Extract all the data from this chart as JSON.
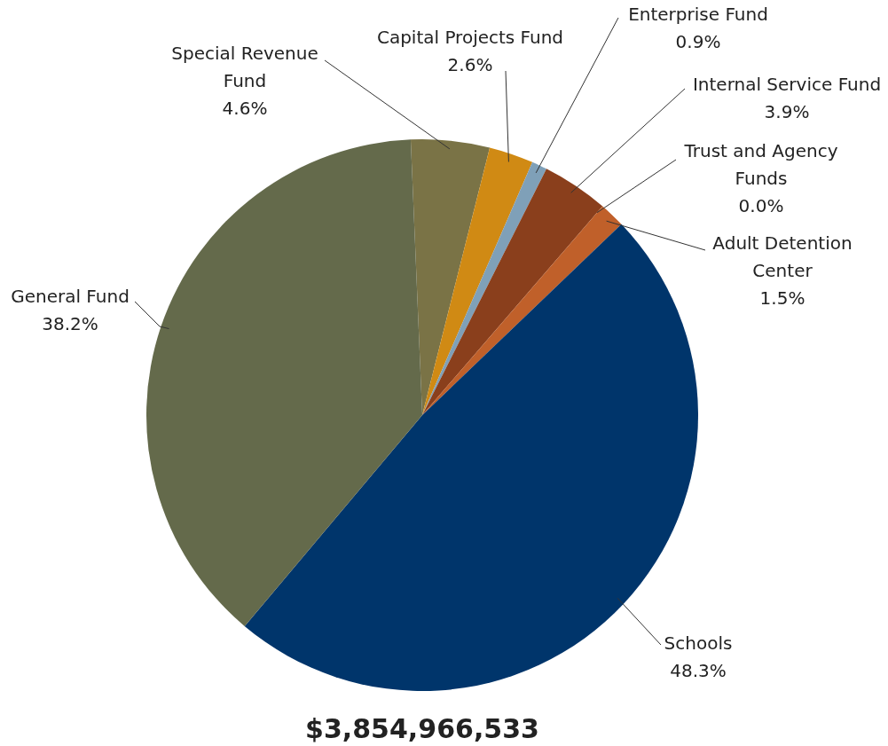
{
  "chart_data": {
    "type": "pie",
    "title": "$3,854,966,533",
    "categories": [
      "Special Revenue Fund",
      "Capital Projects Fund",
      "Enterprise Fund",
      "Internal Service Fund",
      "Trust and Agency Funds",
      "Adult Detention Center",
      "Schools",
      "General Fund"
    ],
    "values": [
      4.6,
      2.6,
      0.9,
      3.9,
      0.0,
      1.5,
      48.3,
      38.2
    ],
    "value_labels": [
      "4.6%",
      "2.6%",
      "0.9%",
      "3.9%",
      "0.0%",
      "1.5%",
      "48.3%",
      "38.2%"
    ],
    "colors": [
      "#7a7346",
      "#d08a14",
      "#7fa0b8",
      "#8a3f1c",
      "#6e4a2a",
      "#c0602a",
      "#00356b",
      "#646a4b"
    ],
    "legend": false
  }
}
